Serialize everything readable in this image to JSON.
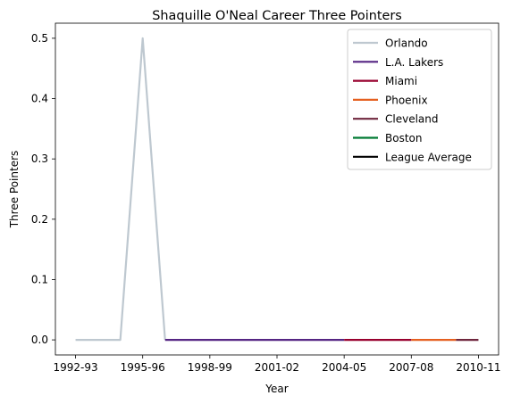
{
  "chart_data": {
    "type": "line",
    "title": "Shaquille O'Neal Career Three Pointers",
    "xlabel": "Year",
    "ylabel": "Three Pointers",
    "x": [
      "1992-93",
      "1993-94",
      "1994-95",
      "1995-96",
      "1996-97",
      "1997-98",
      "1998-99",
      "1999-00",
      "2000-01",
      "2001-02",
      "2002-03",
      "2003-04",
      "2004-05",
      "2005-06",
      "2006-07",
      "2007-08",
      "2008-09",
      "2009-10",
      "2010-11"
    ],
    "x_ticks": [
      "1992-93",
      "1995-96",
      "1998-99",
      "2001-02",
      "2004-05",
      "2007-08",
      "2010-11"
    ],
    "y_ticks": [
      "0.0",
      "0.1",
      "0.2",
      "0.3",
      "0.4",
      "0.5"
    ],
    "ylim": [
      -0.025,
      0.525
    ],
    "grid": false,
    "legend_position": "top-right",
    "series": [
      {
        "name": "Orlando",
        "color": "#BEC8D0",
        "x": [
          "1992-93",
          "1993-94",
          "1994-95",
          "1995-96",
          "1996-97"
        ],
        "values": [
          0.0,
          0.0,
          0.0,
          0.5,
          0.0
        ]
      },
      {
        "name": "L.A. Lakers",
        "color": "#552583",
        "x": [
          "1996-97",
          "1997-98",
          "1998-99",
          "1999-00",
          "2000-01",
          "2001-02",
          "2002-03",
          "2003-04",
          "2004-05"
        ],
        "values": [
          0.0,
          0.0,
          0.0,
          0.0,
          0.0,
          0.0,
          0.0,
          0.0,
          0.0
        ]
      },
      {
        "name": "Miami",
        "color": "#98002E",
        "x": [
          "2004-05",
          "2005-06",
          "2006-07",
          "2007-08"
        ],
        "values": [
          0.0,
          0.0,
          0.0,
          0.0
        ]
      },
      {
        "name": "Phoenix",
        "color": "#E56020",
        "x": [
          "2007-08",
          "2008-09",
          "2009-10"
        ],
        "values": [
          0.0,
          0.0,
          0.0
        ]
      },
      {
        "name": "Cleveland",
        "color": "#6F263D",
        "x": [
          "2009-10",
          "2010-11"
        ],
        "values": [
          0.0,
          0.0
        ]
      },
      {
        "name": "Boston",
        "color": "#007A33",
        "x": [],
        "values": []
      },
      {
        "name": "League Average",
        "color": "#000000",
        "x": [],
        "values": []
      }
    ]
  }
}
